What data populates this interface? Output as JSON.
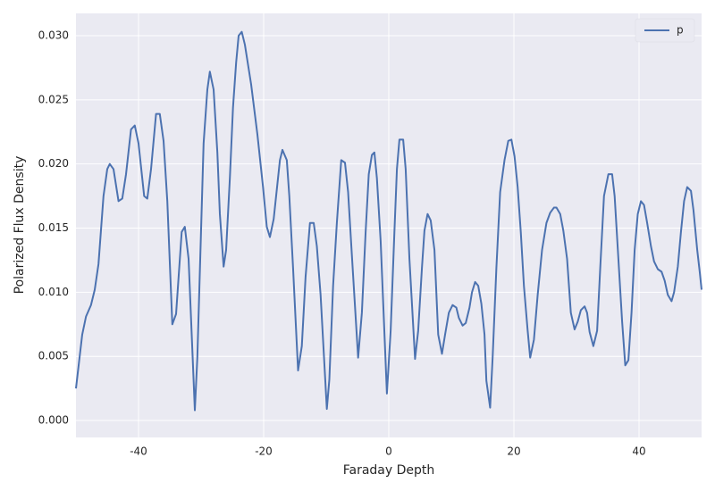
{
  "chart_data": {
    "type": "line",
    "x_label": "Faraday Depth",
    "y_label": "Polarized Flux Density",
    "xlim": [
      -50,
      50
    ],
    "ylim": [
      -0.00132,
      0.03174
    ],
    "xticks": [
      -40,
      -20,
      0,
      20,
      40
    ],
    "yticks": [
      {
        "value": 0,
        "label": "0.000"
      },
      {
        "value": 0.005,
        "label": "0.005"
      },
      {
        "value": 0.01,
        "label": "0.010"
      },
      {
        "value": 0.015,
        "label": "0.015"
      },
      {
        "value": 0.02,
        "label": "0.020"
      },
      {
        "value": 0.025,
        "label": "0.025"
      },
      {
        "value": 0.03,
        "label": "0.030"
      }
    ],
    "grid": true,
    "legend": "upper right",
    "x": [
      -50,
      -49,
      -48.4,
      -47.6,
      -47,
      -46.4,
      -45.6,
      -45,
      -44.6,
      -44,
      -43.2,
      -42.6,
      -42,
      -41.2,
      -40.6,
      -40,
      -39.1,
      -38.6,
      -38,
      -37.2,
      -36.6,
      -36,
      -35.4,
      -34.6,
      -34,
      -33.1,
      -32.6,
      -32,
      -31,
      -30.6,
      -29.6,
      -29,
      -28.6,
      -28,
      -27.4,
      -27,
      -26.4,
      -26,
      -25.4,
      -24.9,
      -24.4,
      -24,
      -23.5,
      -23,
      -22,
      -21,
      -20.1,
      -19.5,
      -19,
      -18.4,
      -17.4,
      -17,
      -16.3,
      -15.9,
      -15.3,
      -14.5,
      -13.9,
      -13.3,
      -12.6,
      -12,
      -11.5,
      -10.9,
      -9.9,
      -9.5,
      -8.9,
      -8.3,
      -7.6,
      -7,
      -6.5,
      -5.9,
      -4.9,
      -4.3,
      -3.7,
      -3.2,
      -2.7,
      -2.3,
      -1.9,
      -1.3,
      -0.3,
      0.3,
      0.9,
      1.3,
      1.7,
      2.3,
      2.7,
      3.3,
      4.2,
      4.7,
      5.3,
      5.7,
      6.2,
      6.7,
      7.3,
      7.9,
      8.5,
      9,
      9.6,
      10.2,
      10.8,
      11.2,
      11.8,
      12.3,
      12.9,
      13.3,
      13.8,
      14.3,
      14.8,
      15.3,
      15.6,
      16.2,
      16.6,
      17.2,
      17.8,
      18.5,
      19.1,
      19.6,
      20.1,
      20.6,
      21.1,
      21.6,
      22.2,
      22.6,
      23.2,
      23.8,
      24.5,
      25.2,
      25.8,
      26.4,
      26.8,
      27.4,
      27.9,
      28.5,
      29.1,
      29.7,
      30.2,
      30.7,
      31.3,
      31.7,
      32.1,
      32.7,
      33.3,
      33.8,
      34.4,
      35.1,
      35.7,
      36.1,
      36.7,
      37.3,
      37.8,
      38.3,
      38.8,
      39.3,
      39.8,
      40.3,
      40.8,
      41.3,
      41.9,
      42.4,
      43,
      43.6,
      44.1,
      44.6,
      45.2,
      45.6,
      46.2,
      46.7,
      47.2,
      47.7,
      48.3,
      48.7,
      49.3,
      49.7,
      50
    ],
    "series": [
      {
        "name": "p",
        "color": "#4c72b0",
        "values": [
          0.0025,
          0.0067,
          0.0081,
          0.009,
          0.0102,
          0.0122,
          0.0175,
          0.0196,
          0.02,
          0.0196,
          0.0171,
          0.0173,
          0.0192,
          0.0227,
          0.023,
          0.0216,
          0.0175,
          0.0173,
          0.0196,
          0.0239,
          0.0239,
          0.0218,
          0.0171,
          0.0075,
          0.0083,
          0.0147,
          0.0151,
          0.0126,
          0.0008,
          0.0049,
          0.0216,
          0.0258,
          0.0272,
          0.0258,
          0.0209,
          0.0161,
          0.012,
          0.0133,
          0.0189,
          0.0244,
          0.0279,
          0.03,
          0.0303,
          0.0293,
          0.0262,
          0.0223,
          0.0182,
          0.0151,
          0.0143,
          0.0157,
          0.0203,
          0.0211,
          0.0203,
          0.0175,
          0.0119,
          0.0039,
          0.0058,
          0.0112,
          0.0154,
          0.0154,
          0.0136,
          0.0098,
          0.0009,
          0.0032,
          0.0105,
          0.0154,
          0.0203,
          0.0201,
          0.0178,
          0.0129,
          0.0049,
          0.0084,
          0.0147,
          0.0192,
          0.0207,
          0.0209,
          0.0189,
          0.014,
          0.0021,
          0.007,
          0.0147,
          0.0196,
          0.0219,
          0.0219,
          0.0196,
          0.0126,
          0.0048,
          0.007,
          0.0119,
          0.0148,
          0.0161,
          0.0156,
          0.0133,
          0.0067,
          0.0052,
          0.0067,
          0.0084,
          0.009,
          0.0088,
          0.008,
          0.0074,
          0.0076,
          0.0088,
          0.01,
          0.0108,
          0.0105,
          0.0091,
          0.0067,
          0.0031,
          0.001,
          0.0049,
          0.0119,
          0.0178,
          0.0203,
          0.0218,
          0.0219,
          0.0206,
          0.0182,
          0.0147,
          0.0105,
          0.007,
          0.0049,
          0.0063,
          0.0098,
          0.0133,
          0.0154,
          0.0162,
          0.0166,
          0.0166,
          0.0161,
          0.0148,
          0.0126,
          0.0084,
          0.0071,
          0.0077,
          0.0086,
          0.0089,
          0.0084,
          0.0069,
          0.0058,
          0.007,
          0.0119,
          0.0175,
          0.0192,
          0.0192,
          0.0175,
          0.0126,
          0.0077,
          0.0043,
          0.0047,
          0.0084,
          0.0133,
          0.0161,
          0.0171,
          0.0168,
          0.0154,
          0.0136,
          0.0124,
          0.0118,
          0.0116,
          0.0109,
          0.0098,
          0.0093,
          0.01,
          0.012,
          0.0147,
          0.0171,
          0.0182,
          0.0179,
          0.0164,
          0.0133,
          0.0116,
          0.0102
        ]
      }
    ]
  }
}
